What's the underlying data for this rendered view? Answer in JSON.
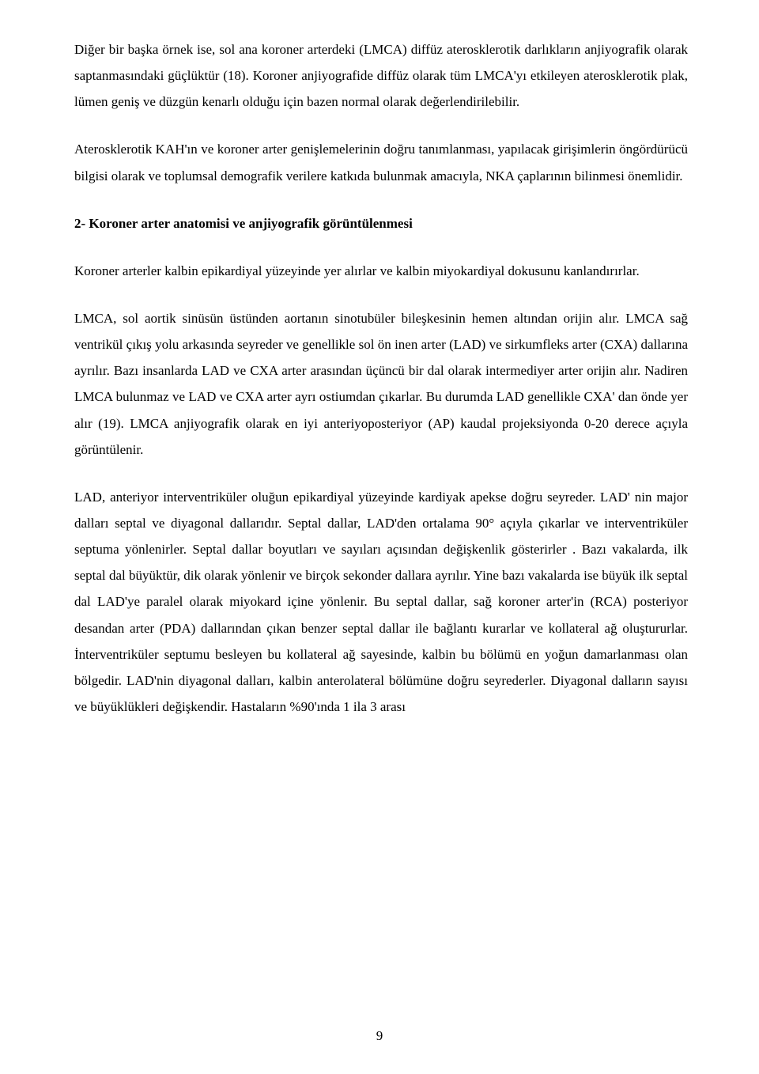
{
  "paragraphs": {
    "p1": "Diğer bir başka örnek ise, sol ana koroner arterdeki (LMCA) diffüz aterosklerotik darlıkların anjiyografik olarak saptanmasındaki güçlüktür (18). Koroner anjiyografide diffüz olarak tüm LMCA'yı etkileyen aterosklerotik plak, lümen geniş ve düzgün kenarlı olduğu için bazen normal olarak değerlendirilebilir.",
    "p2": "Aterosklerotik KAH'ın ve koroner arter genişlemelerinin doğru tanımlanması, yapılacak girişimlerin öngördürücü bilgisi olarak ve toplumsal demografik verilere katkıda bulunmak amacıyla, NKA çaplarının bilinmesi önemlidir.",
    "sectionTitle": "2- Koroner arter anatomisi ve anjiyografik görüntülenmesi",
    "p3": "Koroner arterler kalbin epikardiyal yüzeyinde yer alırlar ve kalbin miyokardiyal dokusunu kanlandırırlar.",
    "p4": "LMCA, sol aortik sinüsün üstünden aortanın sinotubüler bileşkesinin hemen altından orijin alır. LMCA sağ ventrikül çıkış yolu arkasında seyreder ve genellikle sol ön inen arter (LAD) ve sirkumfleks arter (CXA) dallarına ayrılır. Bazı insanlarda LAD ve CXA arter arasından üçüncü bir dal olarak intermediyer arter orijin alır. Nadiren LMCA bulunmaz ve LAD ve CXA arter ayrı ostiumdan çıkarlar. Bu durumda LAD genellikle CXA' dan önde yer alır (19). LMCA anjiyografik olarak en iyi anteriyoposteriyor (AP) kaudal projeksiyonda 0-20 derece açıyla görüntülenir.",
    "p5": "LAD, anteriyor interventriküler oluğun epikardiyal yüzeyinde kardiyak apekse doğru seyreder. LAD' nin major dalları septal ve diyagonal dallarıdır. Septal dallar, LAD'den ortalama 90° açıyla çıkarlar ve interventriküler septuma yönlenirler. Septal dallar boyutları ve sayıları açısından değişkenlik gösterirler . Bazı vakalarda, ilk septal dal büyüktür, dik olarak yönlenir ve birçok sekonder dallara ayrılır. Yine bazı vakalarda ise büyük ilk septal dal LAD'ye paralel olarak miyokard içine yönlenir. Bu septal dallar, sağ koroner arter'in (RCA) posteriyor desandan arter (PDA) dallarından çıkan benzer septal dallar ile bağlantı kurarlar ve kollateral ağ oluştururlar. İnterventriküler septumu besleyen bu kollateral ağ sayesinde, kalbin bu bölümü en yoğun damarlanması olan bölgedir. LAD'nin diyagonal dalları, kalbin anterolateral bölümüne doğru seyrederler. Diyagonal dalların sayısı ve büyüklükleri değişkendir. Hastaların %90'ında 1 ila 3 arası"
  },
  "pageNumber": "9"
}
